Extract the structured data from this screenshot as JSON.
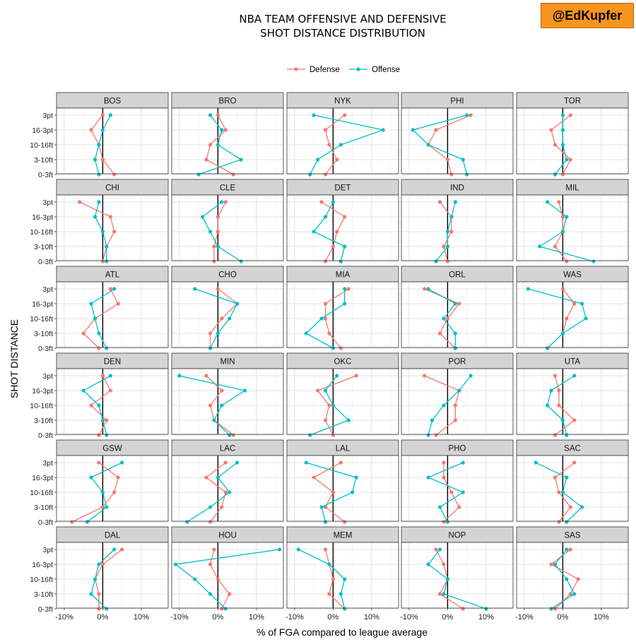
{
  "title": {
    "line1": "NBA TEAM OFFENSIVE AND DEFENSIVE",
    "line2": "SHOT DISTANCE DISTRIBUTION"
  },
  "badge": "@EdKupfer",
  "chart_data": {
    "type": "line",
    "facet": "team",
    "layout": {
      "rows": 6,
      "cols": 5
    },
    "xlabel": "% of FGA compared to league average",
    "ylabel": "SHOT DISTANCE",
    "y_categories": [
      "3pt",
      "16-3pt",
      "10-16ft",
      "3-10ft",
      "0-3ft"
    ],
    "x_ticks": [
      -10,
      0,
      10
    ],
    "x_tick_labels": [
      "-10%",
      "0%",
      "10%"
    ],
    "xlim": [
      -12,
      17
    ],
    "legend": {
      "position": "top",
      "entries": [
        {
          "name": "Defense",
          "color": "#f8766d"
        },
        {
          "name": "Offense",
          "color": "#00bfc4"
        }
      ]
    },
    "grid": true,
    "reference_line_x": 0,
    "panels": [
      {
        "team": "BOS",
        "defense": [
          0,
          -3,
          -1,
          0,
          3
        ],
        "offense": [
          2,
          0,
          -1,
          -2,
          -1
        ]
      },
      {
        "team": "BRO",
        "defense": [
          0,
          2,
          -2,
          -3,
          4
        ],
        "offense": [
          -2,
          1,
          0,
          6,
          -5
        ]
      },
      {
        "team": "NYK",
        "defense": [
          3,
          -2,
          -1,
          1,
          -2
        ],
        "offense": [
          -5,
          13,
          2,
          -4,
          -6
        ]
      },
      {
        "team": "PHI",
        "defense": [
          6,
          -3,
          -5,
          0,
          1
        ],
        "offense": [
          5,
          -9,
          -5,
          4,
          5
        ]
      },
      {
        "team": "TOR",
        "defense": [
          2,
          -3,
          -2,
          2,
          0
        ],
        "offense": [
          0,
          0,
          0,
          1,
          -2
        ]
      },
      {
        "team": "CHI",
        "defense": [
          -6,
          2,
          3,
          1,
          0
        ],
        "offense": [
          -1,
          -2,
          0,
          1,
          1
        ]
      },
      {
        "team": "CLE",
        "defense": [
          2,
          0,
          0,
          -1,
          -1
        ],
        "offense": [
          1,
          -4,
          -2,
          0,
          6
        ]
      },
      {
        "team": "DET",
        "defense": [
          -3,
          3,
          1,
          0,
          -2
        ],
        "offense": [
          0,
          -2,
          -5,
          3,
          2
        ]
      },
      {
        "team": "IND",
        "defense": [
          -2,
          1,
          1,
          -1,
          0
        ],
        "offense": [
          2,
          1,
          0,
          0,
          -3
        ]
      },
      {
        "team": "MIL",
        "defense": [
          -1,
          0,
          0,
          -2,
          1
        ],
        "offense": [
          -4,
          1,
          0,
          -6,
          8
        ]
      },
      {
        "team": "ATL",
        "defense": [
          2,
          4,
          -2,
          -5,
          -1
        ],
        "offense": [
          3,
          -3,
          -2,
          -1,
          1
        ]
      },
      {
        "team": "CHO",
        "defense": [
          0,
          5,
          1,
          -2,
          -2
        ],
        "offense": [
          -6,
          5,
          3,
          0,
          -2
        ]
      },
      {
        "team": "MIA",
        "defense": [
          4,
          -2,
          -2,
          -1,
          2
        ],
        "offense": [
          3,
          3,
          -3,
          -7,
          0
        ]
      },
      {
        "team": "ORL",
        "defense": [
          -6,
          3,
          0,
          -2,
          2
        ],
        "offense": [
          -5,
          2,
          -1,
          2,
          2
        ]
      },
      {
        "team": "WAS",
        "defense": [
          0,
          3,
          1,
          0,
          -4
        ],
        "offense": [
          -9,
          5,
          6,
          0,
          -4
        ]
      },
      {
        "team": "DEN",
        "defense": [
          0,
          2,
          -3,
          1,
          -1
        ],
        "offense": [
          2,
          -5,
          -1,
          0,
          1
        ]
      },
      {
        "team": "MIN",
        "defense": [
          -3,
          1,
          -2,
          -1,
          4
        ],
        "offense": [
          -10,
          7,
          1,
          -1,
          3
        ]
      },
      {
        "team": "OKC",
        "defense": [
          6,
          -4,
          -1,
          -2,
          0
        ],
        "offense": [
          1,
          -2,
          0,
          4,
          -6
        ]
      },
      {
        "team": "POR",
        "defense": [
          -6,
          3,
          2,
          2,
          -3
        ],
        "offense": [
          6,
          3,
          -1,
          -4,
          -5
        ]
      },
      {
        "team": "UTA",
        "defense": [
          -2,
          -1,
          -1,
          3,
          -2
        ],
        "offense": [
          3,
          -3,
          -4,
          0,
          1
        ]
      },
      {
        "team": "GSW",
        "defense": [
          -1,
          4,
          3,
          0,
          -8
        ],
        "offense": [
          5,
          -3,
          0,
          1,
          -4
        ]
      },
      {
        "team": "LAC",
        "defense": [
          2,
          -3,
          2,
          1,
          -2
        ],
        "offense": [
          5,
          0,
          3,
          -2,
          -8
        ]
      },
      {
        "team": "LAL",
        "defense": [
          2,
          -5,
          0,
          -2,
          3
        ],
        "offense": [
          -7,
          6,
          5,
          -3,
          -2
        ]
      },
      {
        "team": "PHO",
        "defense": [
          -1,
          -1,
          1,
          3,
          -1
        ],
        "offense": [
          4,
          -5,
          4,
          -2,
          0
        ]
      },
      {
        "team": "SAC",
        "defense": [
          3,
          -2,
          -1,
          2,
          -1
        ],
        "offense": [
          -7,
          1,
          0,
          5,
          1
        ]
      },
      {
        "team": "DAL",
        "defense": [
          5,
          0,
          -2,
          -1,
          -1
        ],
        "offense": [
          3,
          -1,
          -2,
          -3,
          1
        ]
      },
      {
        "team": "HOU",
        "defense": [
          -1,
          -2,
          0,
          3,
          1
        ],
        "offense": [
          16,
          -11,
          -6,
          -2,
          2
        ]
      },
      {
        "team": "MEM",
        "defense": [
          -2,
          -1,
          0,
          -1,
          3
        ],
        "offense": [
          -9,
          -1,
          3,
          2,
          3
        ]
      },
      {
        "team": "NOP",
        "defense": [
          -3,
          -1,
          0,
          -2,
          4
        ],
        "offense": [
          -2,
          -5,
          0,
          -1,
          10
        ]
      },
      {
        "team": "SAS",
        "defense": [
          2,
          -3,
          4,
          2,
          -2
        ],
        "offense": [
          1,
          -2,
          1,
          3,
          -3
        ]
      }
    ]
  }
}
